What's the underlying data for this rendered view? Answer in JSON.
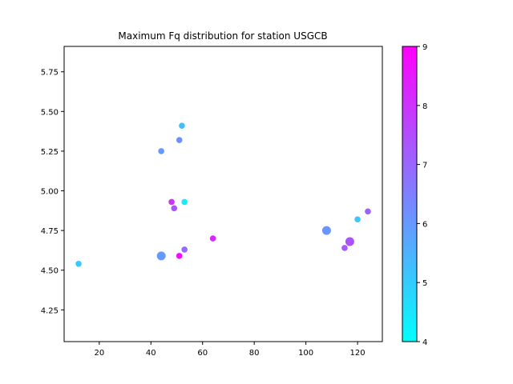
{
  "chart_data": {
    "type": "scatter",
    "title": "Maximum Fq distribution for station USGCB",
    "xlabel": "",
    "ylabel": "",
    "xlim": [
      6.4,
      129.6
    ],
    "ylim": [
      4.05,
      5.91
    ],
    "xticks": [
      20,
      40,
      60,
      80,
      100,
      120
    ],
    "yticks": [
      4.25,
      4.5,
      4.75,
      5.0,
      5.25,
      5.5,
      5.75
    ],
    "xtick_labels": [
      "20",
      "40",
      "60",
      "80",
      "100",
      "120"
    ],
    "ytick_labels": [
      "4.25",
      "4.50",
      "4.75",
      "5.00",
      "5.25",
      "5.50",
      "5.75"
    ],
    "grid": false,
    "colorbar": {
      "colormap": "cool",
      "min": 4,
      "max": 9,
      "ticks": [
        4,
        5,
        6,
        7,
        8,
        9
      ],
      "tick_labels": [
        "4",
        "5",
        "6",
        "7",
        "8",
        "9"
      ],
      "low_color": "#00ffff",
      "high_color": "#ff00ff"
    },
    "points": [
      {
        "x": 12,
        "y": 4.54,
        "c": 5.1,
        "size": "small"
      },
      {
        "x": 44,
        "y": 4.59,
        "c": 6.0,
        "size": "large"
      },
      {
        "x": 44,
        "y": 5.25,
        "c": 6.0,
        "size": "small"
      },
      {
        "x": 48,
        "y": 4.93,
        "c": 8.0,
        "size": "small"
      },
      {
        "x": 49,
        "y": 4.89,
        "c": 7.3,
        "size": "small"
      },
      {
        "x": 51,
        "y": 5.32,
        "c": 6.2,
        "size": "small"
      },
      {
        "x": 51,
        "y": 4.59,
        "c": 8.8,
        "size": "small"
      },
      {
        "x": 52,
        "y": 5.41,
        "c": 5.3,
        "size": "small"
      },
      {
        "x": 53,
        "y": 4.93,
        "c": 4.4,
        "size": "small"
      },
      {
        "x": 53,
        "y": 4.63,
        "c": 7.0,
        "size": "small"
      },
      {
        "x": 64,
        "y": 4.7,
        "c": 8.2,
        "size": "small"
      },
      {
        "x": 108,
        "y": 4.75,
        "c": 6.1,
        "size": "large"
      },
      {
        "x": 115,
        "y": 4.64,
        "c": 7.2,
        "size": "small"
      },
      {
        "x": 117,
        "y": 4.68,
        "c": 7.4,
        "size": "large"
      },
      {
        "x": 120,
        "y": 4.82,
        "c": 5.1,
        "size": "small"
      },
      {
        "x": 124,
        "y": 4.87,
        "c": 7.1,
        "size": "small"
      }
    ]
  }
}
